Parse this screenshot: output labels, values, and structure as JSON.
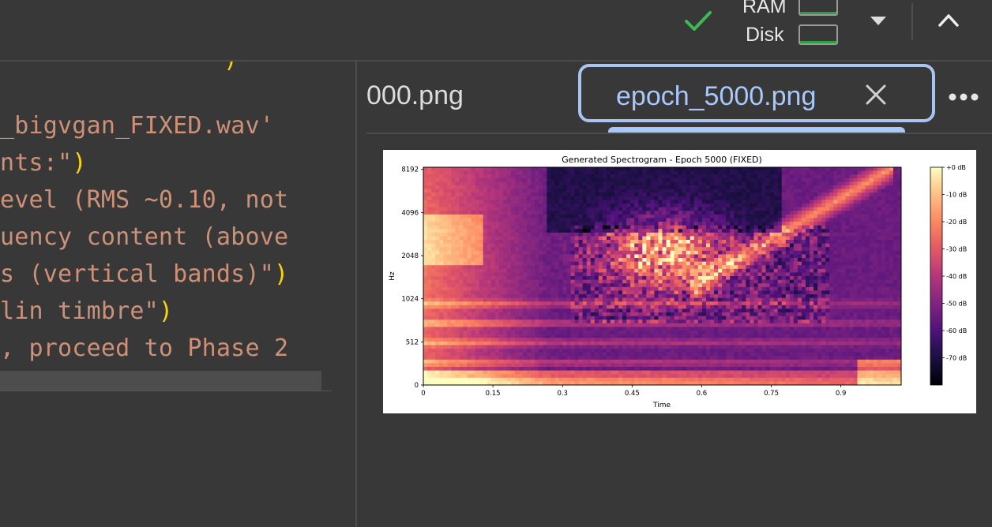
{
  "status": {
    "ram_label": "RAM",
    "disk_label": "Disk",
    "connected_icon": "check-icon",
    "check_color": "#3fb950"
  },
  "editor": {
    "lines": [
      {
        "text": "_bigvgan_FIXED.wav'",
        "paren": "",
        "plain": ""
      },
      {
        "text": "nts:\"",
        "paren": ")",
        "plain": ""
      },
      {
        "text": "evel (RMS ~0.10, not",
        "paren": "",
        "plain": ""
      },
      {
        "text": "uency content (above",
        "paren": "",
        "plain": ""
      },
      {
        "text": "s (vertical bands)\"",
        "paren": ")",
        "plain": ""
      },
      {
        "text": "lin timbre\"",
        "paren": ")",
        "plain": ""
      },
      {
        "text": ", proceed to Phase 2",
        "paren": "",
        "plain": ""
      }
    ]
  },
  "viewer": {
    "prev_tab_label": "000.png",
    "active_tab_label": "epoch_5000.png",
    "active_color": "#a8c7fa"
  },
  "chart_data": {
    "type": "heatmap",
    "title": "Generated Spectrogram - Epoch 5000 (FIXED)",
    "xlabel": "Time",
    "ylabel": "Hz",
    "x_ticks": [
      "0",
      "0.15",
      "0.3",
      "0.45",
      "0.6",
      "0.75",
      "0.9"
    ],
    "x_tick_values": [
      0,
      0.15,
      0.3,
      0.45,
      0.6,
      0.75,
      0.9
    ],
    "xlim": [
      0,
      1.03
    ],
    "y_ticks": [
      "0",
      "512",
      "1024",
      "2048",
      "4096",
      "8192"
    ],
    "colorbar_ticks": [
      "+0 dB",
      "-10 dB",
      "-20 dB",
      "-30 dB",
      "-40 dB",
      "-50 dB",
      "-60 dB",
      "-70 dB"
    ],
    "colorbar_range": [
      -80,
      0
    ],
    "colormap": "magma"
  }
}
